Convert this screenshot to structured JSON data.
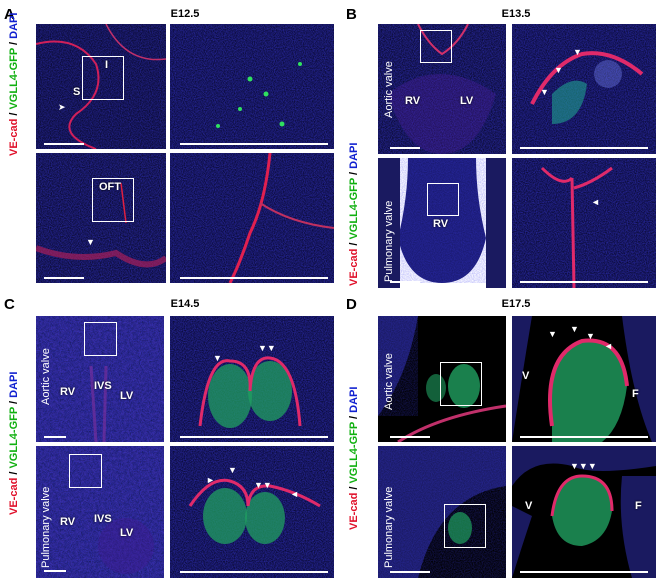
{
  "panels": {
    "A": {
      "label": "A",
      "stage": "E12.5",
      "ann": {
        "i": "I",
        "s": "S",
        "oft": "OFT"
      }
    },
    "B": {
      "label": "B",
      "stage": "E13.5",
      "ann": {
        "rv": "RV",
        "lv": "LV",
        "rv2": "RV"
      },
      "rows": [
        "Aortic valve",
        "Pulmonary valve"
      ]
    },
    "C": {
      "label": "C",
      "stage": "E14.5",
      "ann": {
        "rv": "RV",
        "ivs": "IVS",
        "lv": "LV",
        "rv2": "RV",
        "ivs2": "IVS",
        "lv2": "LV"
      },
      "rows": [
        "Aortic valve",
        "Pulmonary valve"
      ]
    },
    "D": {
      "label": "D",
      "stage": "E17.5",
      "ann": {
        "v": "V",
        "f": "F",
        "v2": "V",
        "f2": "F"
      },
      "rows": [
        "Aortic valve",
        "Pulmonary valve"
      ]
    }
  },
  "channels": {
    "red": "VE-cad",
    "sep1": " / ",
    "green": "VGLL4-GFP",
    "sep2": " / ",
    "blue": "DAPI"
  },
  "colors": {
    "red": "#e0102a",
    "green": "#10b010",
    "blue": "#1020d0"
  }
}
